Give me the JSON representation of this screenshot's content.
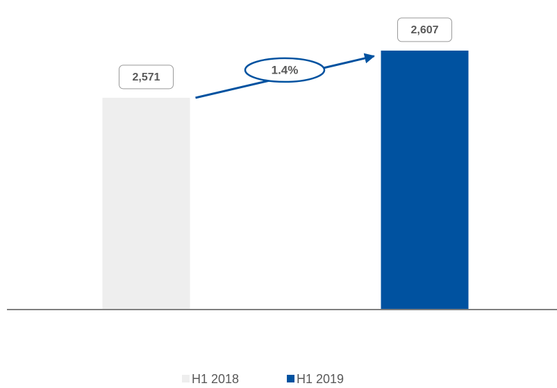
{
  "chart_data": {
    "type": "bar",
    "categories": [
      "H1 2018",
      "H1 2019"
    ],
    "values": [
      2571,
      2607
    ],
    "value_labels": [
      "2,571",
      "2,607"
    ],
    "colors": [
      "#eeeeee",
      "#0052a0"
    ],
    "ylim": [
      2410,
      2635
    ],
    "annotation": "1.4%",
    "legend": "bottom"
  }
}
